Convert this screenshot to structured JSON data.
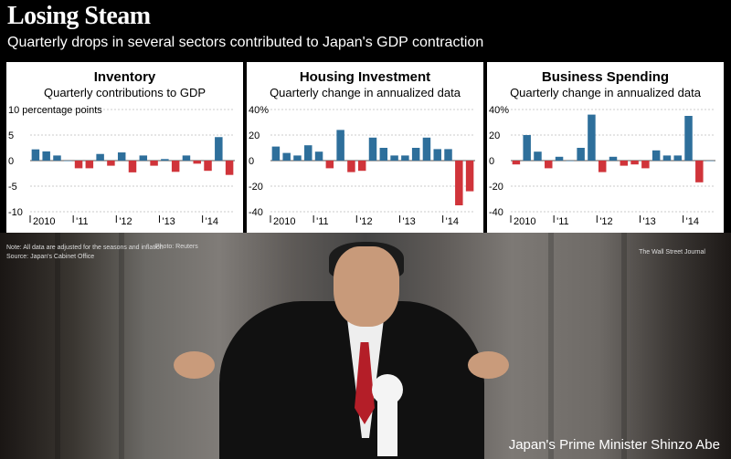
{
  "header": {
    "title": "Losing Steam",
    "subtitle": "Quarterly drops in several sectors contributed to Japan's GDP contraction"
  },
  "footer": {
    "note": "Note: All data are adjusted for the seasons and inflation",
    "source": "Source: Japan's Cabinet Office",
    "photo_credit": "Photo: Reuters",
    "publisher": "The Wall Street Journal",
    "caption": "Japan's Prime Minister Shinzo Abe"
  },
  "colors": {
    "positive": "#2e6f9b",
    "negative": "#d0343a",
    "gridline": "#bbbbbb"
  },
  "chart_data": [
    {
      "type": "bar",
      "title": "Inventory",
      "subtitle": "Quarterly contributions to GDP",
      "ylim": [
        -10,
        10
      ],
      "yticks": [
        10,
        5,
        0,
        -5,
        -10
      ],
      "ytick_labels": [
        "10 percentage points",
        "5",
        "0",
        "-5",
        "-10"
      ],
      "xtick_labels": [
        "2010",
        "'11",
        "'12",
        "'13",
        "'14"
      ],
      "grid": true,
      "quarters": [
        "2010 Q1",
        "2010 Q2",
        "2010 Q3",
        "2010 Q4",
        "2011 Q1",
        "2011 Q2",
        "2011 Q3",
        "2011 Q4",
        "2012 Q1",
        "2012 Q2",
        "2012 Q3",
        "2012 Q4",
        "2013 Q1",
        "2013 Q2",
        "2013 Q3",
        "2013 Q4",
        "2014 Q1",
        "2014 Q2",
        "2014 Q3"
      ],
      "values": [
        2.2,
        1.8,
        1.0,
        0,
        -1.5,
        -1.5,
        1.3,
        -1.0,
        1.6,
        -2.3,
        1.0,
        -1.0,
        0.3,
        -2.2,
        1.0,
        -0.6,
        -2.0,
        4.6,
        -2.8
      ]
    },
    {
      "type": "bar",
      "title": "Housing Investment",
      "subtitle": "Quarterly change in annualized data",
      "ylim": [
        -40,
        40
      ],
      "yticks": [
        40,
        20,
        0,
        -20,
        -40
      ],
      "ytick_labels": [
        "40%",
        "20",
        "0",
        "-20",
        "-40"
      ],
      "xtick_labels": [
        "2010",
        "'11",
        "'12",
        "'13",
        "'14"
      ],
      "grid": true,
      "quarters": [
        "2010 Q1",
        "2010 Q2",
        "2010 Q3",
        "2010 Q4",
        "2011 Q1",
        "2011 Q2",
        "2011 Q3",
        "2011 Q4",
        "2012 Q1",
        "2012 Q2",
        "2012 Q3",
        "2012 Q4",
        "2013 Q1",
        "2013 Q2",
        "2013 Q3",
        "2013 Q4",
        "2014 Q1",
        "2014 Q2",
        "2014 Q3"
      ],
      "values": [
        11,
        6,
        4,
        12,
        7,
        -6,
        24,
        -9,
        -8,
        18,
        10,
        4,
        4,
        10,
        18,
        9,
        9,
        -35,
        -24
      ]
    },
    {
      "type": "bar",
      "title": "Business Spending",
      "subtitle": "Quarterly change in annualized data",
      "ylim": [
        -40,
        40
      ],
      "yticks": [
        40,
        20,
        0,
        -20,
        -40
      ],
      "ytick_labels": [
        "40%",
        "20",
        "0",
        "-20",
        "-40"
      ],
      "xtick_labels": [
        "2010",
        "'11",
        "'12",
        "'13",
        "'14"
      ],
      "grid": true,
      "quarters": [
        "2010 Q1",
        "2010 Q2",
        "2010 Q3",
        "2010 Q4",
        "2011 Q1",
        "2011 Q2",
        "2011 Q3",
        "2011 Q4",
        "2012 Q1",
        "2012 Q2",
        "2012 Q3",
        "2012 Q4",
        "2013 Q1",
        "2013 Q2",
        "2013 Q3",
        "2013 Q4",
        "2014 Q1",
        "2014 Q2",
        "2014 Q3"
      ],
      "values": [
        -3,
        20,
        7,
        -6,
        3,
        0,
        10,
        36,
        -9,
        3,
        -4,
        -3,
        -6,
        8,
        4,
        4,
        35,
        -17,
        0
      ]
    }
  ]
}
